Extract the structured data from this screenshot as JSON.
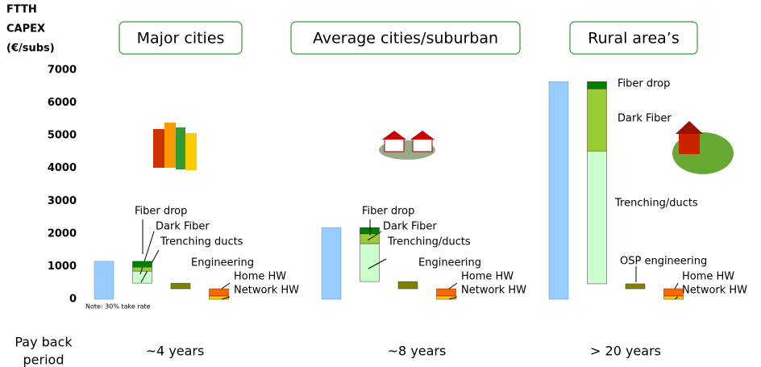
{
  "chart_data": {
    "type": "waterfall",
    "title_lines": [
      "FTTH",
      "CAPEX",
      "(€/subs)"
    ],
    "note": "Note: 30% take rate",
    "row_label_lines": [
      "Pay back",
      "period"
    ],
    "ylim": [
      0,
      7000
    ],
    "yticks": [
      0,
      1000,
      2000,
      3000,
      4000,
      5000,
      6000,
      7000
    ],
    "total_color": "#99ccff",
    "groups": [
      {
        "title": "Major cities",
        "payback": "~4 years",
        "total": 1160,
        "segments": [
          {
            "name": "Network HW",
            "color": "#ffcc00",
            "value": 100
          },
          {
            "name": "Home HW",
            "color": "#ff6600",
            "value": 220
          },
          {
            "name": "Engineering",
            "color": "#808000",
            "value": 170
          },
          {
            "name": "Trenching ducts",
            "color": "#ccffcc",
            "value": 370
          },
          {
            "name": "Dark Fiber",
            "color": "#99cc33",
            "value": 120
          },
          {
            "name": "Fiber drop",
            "color": "#008000",
            "value": 180
          }
        ]
      },
      {
        "title": "Average cities/suburban",
        "payback": "~8 years",
        "total": 2190,
        "segments": [
          {
            "name": "Network HW",
            "color": "#ffcc00",
            "value": 100
          },
          {
            "name": "Home HW",
            "color": "#ff6600",
            "value": 220
          },
          {
            "name": "Engineering",
            "color": "#808000",
            "value": 220
          },
          {
            "name": "Trenching/ducts",
            "color": "#ccffcc",
            "value": 1160
          },
          {
            "name": "Dark Fiber",
            "color": "#99cc33",
            "value": 300
          },
          {
            "name": "Fiber drop",
            "color": "#008000",
            "value": 190
          }
        ]
      },
      {
        "title": "Rural area’s",
        "payback": "> 20 years",
        "total": 6650,
        "segments": [
          {
            "name": "Network HW",
            "color": "#ffcc00",
            "value": 100
          },
          {
            "name": "Home HW",
            "color": "#ff6600",
            "value": 220
          },
          {
            "name": "OSP engineering",
            "color": "#808000",
            "value": 150
          },
          {
            "name": "Trenching/ducts",
            "color": "#ccffcc",
            "value": 4060
          },
          {
            "name": "Dark Fiber",
            "color": "#99cc33",
            "value": 1900
          },
          {
            "name": "Fiber drop",
            "color": "#008000",
            "value": 220
          }
        ]
      }
    ]
  }
}
